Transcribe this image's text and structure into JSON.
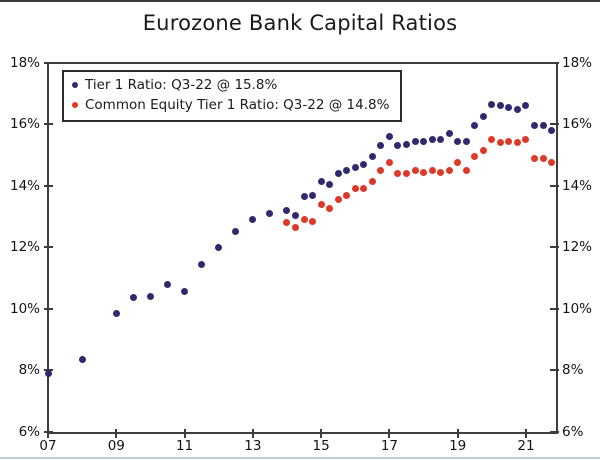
{
  "page_title": "Eurozone Bank Capital Ratios",
  "colors": {
    "tier1": "#2f2a70",
    "cet1": "#dd3928",
    "axis": "#3d3d3d",
    "text": "#141414",
    "top_edge": "#3a3a3a",
    "bottom_edge": "#c2ced6"
  },
  "legend": {
    "items": [
      {
        "id": "tier1",
        "label": "Tier 1 Ratio: Q3-22 @ 15.8%"
      },
      {
        "id": "cet1",
        "label": "Common Equity Tier 1 Ratio: Q3-22 @ 14.8%"
      }
    ]
  },
  "chart_data": {
    "type": "scatter",
    "title": "Eurozone Bank Capital Ratios",
    "xlabel": "",
    "ylabel": "",
    "grid": false,
    "legend_position": "top-left",
    "x_axis": {
      "min": 2007,
      "max": 2021.85,
      "tick_years": [
        2007,
        2009,
        2011,
        2013,
        2015,
        2017,
        2019,
        2021
      ],
      "tick_labels": [
        "07",
        "09",
        "11",
        "13",
        "15",
        "17",
        "19",
        "21"
      ]
    },
    "y_axis": {
      "min": 6,
      "max": 18,
      "unit": "%",
      "tick_values": [
        6,
        8,
        10,
        12,
        14,
        16,
        18
      ],
      "tick_labels": [
        "6%",
        "8%",
        "10%",
        "12%",
        "14%",
        "16%",
        "18%"
      ],
      "both_sides": true
    },
    "series": [
      {
        "id": "tier1",
        "name": "Tier 1 Ratio",
        "color": "#2f2a70",
        "points": [
          [
            2007.0,
            7.9
          ],
          [
            2008.0,
            8.35
          ],
          [
            2009.0,
            9.85
          ],
          [
            2009.5,
            10.35
          ],
          [
            2010.0,
            10.4
          ],
          [
            2010.5,
            10.8
          ],
          [
            2011.0,
            10.55
          ],
          [
            2011.5,
            11.45
          ],
          [
            2012.0,
            12.0
          ],
          [
            2012.5,
            12.5
          ],
          [
            2013.0,
            12.9
          ],
          [
            2013.5,
            13.1
          ],
          [
            2014.0,
            13.2
          ],
          [
            2014.25,
            13.05
          ],
          [
            2014.5,
            13.65
          ],
          [
            2014.75,
            13.7
          ],
          [
            2015.0,
            14.15
          ],
          [
            2015.25,
            14.05
          ],
          [
            2015.5,
            14.4
          ],
          [
            2015.75,
            14.5
          ],
          [
            2016.0,
            14.6
          ],
          [
            2016.25,
            14.7
          ],
          [
            2016.5,
            14.95
          ],
          [
            2016.75,
            15.3
          ],
          [
            2017.0,
            15.6
          ],
          [
            2017.25,
            15.3
          ],
          [
            2017.5,
            15.35
          ],
          [
            2017.75,
            15.45
          ],
          [
            2018.0,
            15.45
          ],
          [
            2018.25,
            15.5
          ],
          [
            2018.5,
            15.5
          ],
          [
            2018.75,
            15.7
          ],
          [
            2019.0,
            15.45
          ],
          [
            2019.25,
            15.45
          ],
          [
            2019.5,
            15.95
          ],
          [
            2019.75,
            16.25
          ],
          [
            2020.0,
            16.65
          ],
          [
            2020.25,
            16.6
          ],
          [
            2020.5,
            16.55
          ],
          [
            2020.75,
            16.5
          ],
          [
            2021.0,
            16.6
          ],
          [
            2021.25,
            15.95
          ],
          [
            2021.5,
            15.95
          ],
          [
            2021.75,
            15.8
          ]
        ]
      },
      {
        "id": "cet1",
        "name": "Common Equity Tier 1 Ratio",
        "color": "#dd3928",
        "points": [
          [
            2014.0,
            12.8
          ],
          [
            2014.25,
            12.65
          ],
          [
            2014.5,
            12.9
          ],
          [
            2014.75,
            12.85
          ],
          [
            2015.0,
            13.4
          ],
          [
            2015.25,
            13.25
          ],
          [
            2015.5,
            13.55
          ],
          [
            2015.75,
            13.7
          ],
          [
            2016.0,
            13.9
          ],
          [
            2016.25,
            13.9
          ],
          [
            2016.5,
            14.15
          ],
          [
            2016.75,
            14.5
          ],
          [
            2017.0,
            14.75
          ],
          [
            2017.25,
            14.4
          ],
          [
            2017.5,
            14.4
          ],
          [
            2017.75,
            14.5
          ],
          [
            2018.0,
            14.45
          ],
          [
            2018.25,
            14.5
          ],
          [
            2018.5,
            14.45
          ],
          [
            2018.75,
            14.5
          ],
          [
            2019.0,
            14.75
          ],
          [
            2019.25,
            14.5
          ],
          [
            2019.5,
            14.95
          ],
          [
            2019.75,
            15.15
          ],
          [
            2020.0,
            15.5
          ],
          [
            2020.25,
            15.4
          ],
          [
            2020.5,
            15.45
          ],
          [
            2020.75,
            15.4
          ],
          [
            2021.0,
            15.5
          ],
          [
            2021.25,
            14.9
          ],
          [
            2021.5,
            14.9
          ],
          [
            2021.75,
            14.75
          ]
        ]
      }
    ]
  }
}
